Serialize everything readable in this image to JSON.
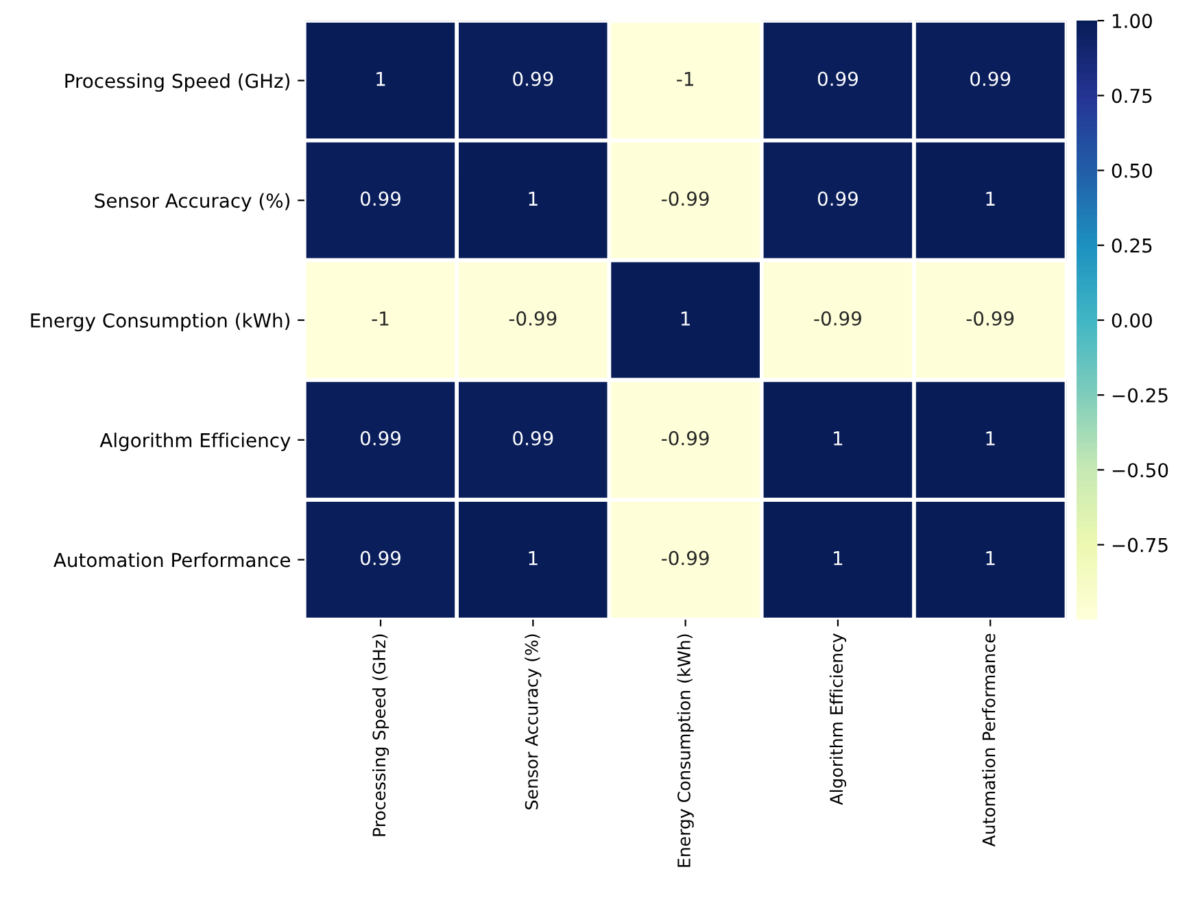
{
  "chart_data": {
    "type": "heatmap",
    "categories": [
      "Processing Speed (GHz)",
      "Sensor Accuracy (%)",
      "Energy Consumption (kWh)",
      "Algorithm Efficiency",
      "Automation Performance"
    ],
    "y_categories": [
      "Processing Speed (GHz)",
      "Sensor Accuracy (%)",
      "Energy Consumption (kWh)",
      "Algorithm Efficiency",
      "Automation Performance"
    ],
    "cells": [
      [
        1,
        0.99,
        -1,
        0.99,
        0.99
      ],
      [
        0.99,
        1,
        -0.99,
        0.99,
        1
      ],
      [
        -1,
        -0.99,
        1,
        -0.99,
        -0.99
      ],
      [
        0.99,
        0.99,
        -0.99,
        1,
        1
      ],
      [
        0.99,
        1,
        -0.99,
        1,
        1
      ]
    ],
    "data_labels": true,
    "clim": [
      -1,
      1
    ],
    "cticks": [
      {
        "value": -0.75,
        "label": "−0.75"
      },
      {
        "value": -0.5,
        "label": "−0.50"
      },
      {
        "value": -0.25,
        "label": "−0.25"
      },
      {
        "value": 0,
        "label": "0.00"
      },
      {
        "value": 0.25,
        "label": "0.25"
      },
      {
        "value": 0.5,
        "label": "0.50"
      },
      {
        "value": 0.75,
        "label": "0.75"
      },
      {
        "value": 1,
        "label": "1.00"
      }
    ]
  }
}
